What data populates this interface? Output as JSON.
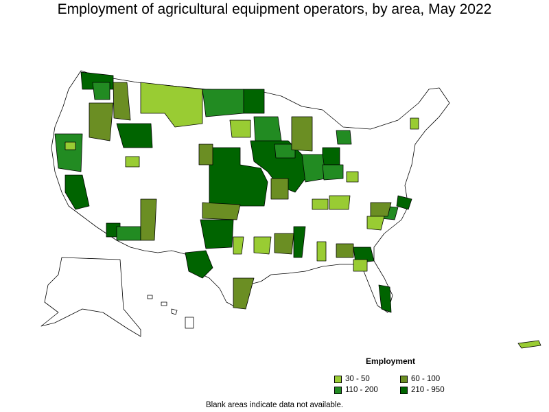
{
  "title": "Employment of agricultural equipment operators, by area, May 2022",
  "legend": {
    "title": "Employment",
    "items": [
      {
        "label": "30 - 50",
        "color": "#99cc33"
      },
      {
        "label": "60 - 100",
        "color": "#6b8e23"
      },
      {
        "label": "110 - 200",
        "color": "#228b22"
      },
      {
        "label": "210 - 950",
        "color": "#006400"
      }
    ]
  },
  "footnote": "Blank areas indicate data not available."
}
